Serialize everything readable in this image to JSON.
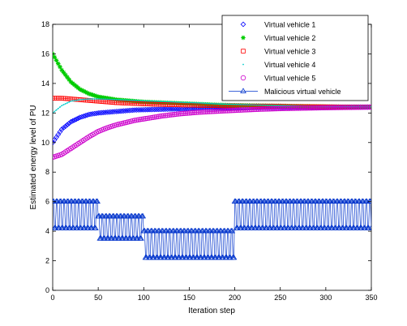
{
  "chart_data": {
    "type": "line",
    "title": "",
    "xlabel": "Iteration step",
    "ylabel": "Estimated energy level of PU",
    "xlim": [
      0,
      350
    ],
    "ylim": [
      0,
      18
    ],
    "xticks": [
      "0",
      "50",
      "100",
      "150",
      "200",
      "250",
      "300",
      "350"
    ],
    "yticks": [
      "0",
      "2",
      "4",
      "6",
      "8",
      "10",
      "12",
      "14",
      "16",
      "18"
    ],
    "grid": false,
    "legend_position": "top-right",
    "series": [
      {
        "name": "Virtual vehicle 1",
        "marker": "diamond",
        "color": "#0000ff",
        "x": [
          0,
          10,
          20,
          30,
          40,
          50,
          60,
          70,
          80,
          90,
          100,
          120,
          140,
          160,
          180,
          200,
          225,
          250,
          275,
          300,
          325,
          350
        ],
        "y": [
          10.0,
          10.9,
          11.4,
          11.7,
          11.9,
          12.0,
          12.05,
          12.1,
          12.15,
          12.2,
          12.22,
          12.25,
          12.28,
          12.3,
          12.32,
          12.33,
          12.35,
          12.36,
          12.38,
          12.38,
          12.39,
          12.4
        ]
      },
      {
        "name": "Virtual vehicle 2",
        "marker": "star",
        "color": "#00cc00",
        "x": [
          0,
          10,
          20,
          30,
          40,
          50,
          60,
          70,
          80,
          90,
          100,
          120,
          140,
          160,
          180,
          200,
          225,
          250,
          275,
          300,
          325,
          350
        ],
        "y": [
          16.0,
          14.9,
          14.1,
          13.6,
          13.3,
          13.1,
          13.0,
          12.9,
          12.85,
          12.8,
          12.75,
          12.7,
          12.65,
          12.6,
          12.55,
          12.52,
          12.5,
          12.48,
          12.45,
          12.43,
          12.42,
          12.42
        ]
      },
      {
        "name": "Virtual vehicle 3",
        "marker": "square",
        "color": "#ff0000",
        "x": [
          0,
          10,
          20,
          30,
          40,
          50,
          60,
          70,
          80,
          90,
          100,
          120,
          140,
          160,
          180,
          200,
          225,
          250,
          275,
          300,
          325,
          350
        ],
        "y": [
          13.0,
          13.0,
          12.95,
          12.9,
          12.85,
          12.8,
          12.75,
          12.7,
          12.67,
          12.65,
          12.62,
          12.58,
          12.55,
          12.52,
          12.5,
          12.48,
          12.46,
          12.45,
          12.43,
          12.42,
          12.41,
          12.4
        ]
      },
      {
        "name": "Virtual vehicle 4",
        "marker": "point",
        "color": "#00cccc",
        "x": [
          0,
          10,
          20,
          30,
          40,
          50,
          60,
          70,
          80,
          90,
          100,
          120,
          140,
          160,
          180,
          200,
          225,
          250,
          275,
          300,
          325,
          350
        ],
        "y": [
          12.0,
          12.5,
          12.8,
          12.9,
          12.95,
          12.95,
          12.93,
          12.9,
          12.88,
          12.85,
          12.82,
          12.78,
          12.72,
          12.68,
          12.62,
          12.58,
          12.54,
          12.5,
          12.47,
          12.45,
          12.43,
          12.42
        ]
      },
      {
        "name": "Virtual vehicle 5",
        "marker": "circle",
        "color": "#cc00cc",
        "x": [
          0,
          10,
          20,
          30,
          40,
          50,
          60,
          70,
          80,
          90,
          100,
          120,
          140,
          160,
          180,
          200,
          225,
          250,
          275,
          300,
          325,
          350
        ],
        "y": [
          9.0,
          9.2,
          9.6,
          10.0,
          10.4,
          10.75,
          11.0,
          11.2,
          11.35,
          11.5,
          11.6,
          11.8,
          11.95,
          12.05,
          12.12,
          12.18,
          12.25,
          12.3,
          12.33,
          12.36,
          12.38,
          12.4
        ]
      },
      {
        "name": "Malicious virtual vehicle",
        "marker": "triangle",
        "color": "#0033cc",
        "segments": [
          {
            "x": [
              0,
              49
            ],
            "low": 4.2,
            "high": 6.0
          },
          {
            "x": [
              50,
              99
            ],
            "low": 3.5,
            "high": 5.0
          },
          {
            "x": [
              100,
              199
            ],
            "low": 2.2,
            "high": 4.0
          },
          {
            "x": [
              200,
              350
            ],
            "low": 4.2,
            "high": 6.0
          }
        ]
      }
    ]
  }
}
